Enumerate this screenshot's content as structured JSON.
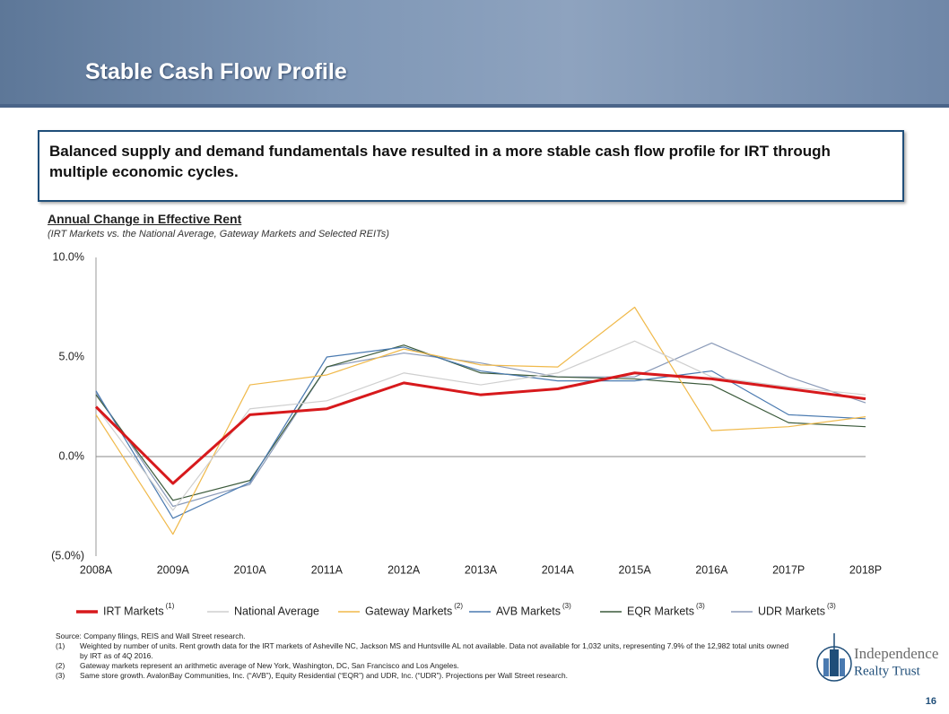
{
  "slide_title": "Stable Cash Flow Profile",
  "callout": "Balanced supply and demand fundamentals have resulted in a more stable cash flow profile for IRT through multiple economic cycles.",
  "chart_data": {
    "type": "line",
    "title": "Annual Change in Effective Rent",
    "subtitle": "(IRT Markets vs. the National Average, Gateway Markets and Selected REITs)",
    "categories": [
      "2008A",
      "2009A",
      "2010A",
      "2011A",
      "2012A",
      "2013A",
      "2014A",
      "2015A",
      "2016A",
      "2017P",
      "2018P"
    ],
    "ylim": [
      -5,
      10
    ],
    "yticks": [
      {
        "value": -5,
        "label": "(5.0%)"
      },
      {
        "value": 0,
        "label": "0.0%"
      },
      {
        "value": 5,
        "label": "5.0%"
      },
      {
        "value": 10,
        "label": "10.0%"
      }
    ],
    "zero_line": true,
    "grid": false,
    "series": [
      {
        "name": "IRT Markets",
        "note": "(1)",
        "color": "#d7191c",
        "width": 3,
        "values": [
          2.5,
          -1.35,
          2.1,
          2.4,
          3.7,
          3.1,
          3.4,
          4.2,
          3.9,
          3.4,
          2.9
        ]
      },
      {
        "name": "National Average",
        "color": "#cfcfcf",
        "width": 1.2,
        "values": [
          2.5,
          -2.7,
          2.4,
          2.8,
          4.2,
          3.6,
          4.2,
          5.8,
          4.0,
          3.5,
          3.1
        ]
      },
      {
        "name": "Gateway Markets",
        "note": "(2)",
        "color": "#f0b94a",
        "width": 1.2,
        "values": [
          2.1,
          -3.9,
          3.6,
          4.1,
          5.4,
          4.6,
          4.5,
          7.5,
          1.3,
          1.5,
          2.0
        ]
      },
      {
        "name": "AVB Markets",
        "note": "(3)",
        "color": "#4a7ab0",
        "width": 1.2,
        "values": [
          3.3,
          -3.1,
          -1.3,
          5.0,
          5.5,
          4.3,
          3.8,
          3.8,
          4.3,
          2.1,
          1.9
        ]
      },
      {
        "name": "EQR Markets",
        "note": "(3)",
        "color": "#3b5a3b",
        "width": 1.2,
        "values": [
          3.1,
          -2.2,
          -1.2,
          4.5,
          5.6,
          4.2,
          4.0,
          3.9,
          3.6,
          1.7,
          1.5
        ]
      },
      {
        "name": "UDR Markets",
        "note": "(3)",
        "color": "#8a9ab8",
        "width": 1.2,
        "values": [
          3.2,
          -2.5,
          -1.4,
          4.5,
          5.2,
          4.7,
          4.0,
          4.0,
          5.7,
          4.0,
          2.7
        ]
      }
    ]
  },
  "source": "Source: Company filings, REIS and Wall Street research.",
  "footnotes": [
    {
      "marker": "(1)",
      "text": "Weighted by number of units.  Rent growth data for the IRT markets of Asheville NC, Jackson MS and Huntsville AL not available.  Data not available for 1,032 units, representing 7.9% of the 12,982 total units owned by IRT as of 4Q 2016."
    },
    {
      "marker": "(2)",
      "text": "Gateway markets represent an arithmetic average of New York, Washington, DC, San Francisco and Los Angeles."
    },
    {
      "marker": "(3)",
      "text": "Same store growth. AvalonBay Communities, Inc. (“AVB”), Equity Residential  (“EQR”) and UDR, Inc. (“UDR”).  Projections per Wall Street research."
    }
  ],
  "logo": {
    "line1": "Independence",
    "line2": "Realty Trust"
  },
  "page_number": "16"
}
